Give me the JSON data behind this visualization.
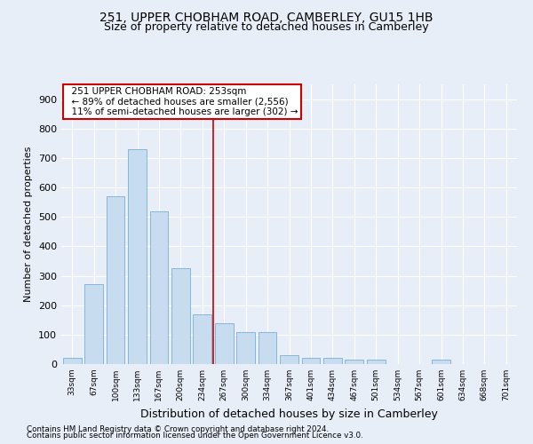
{
  "title1": "251, UPPER CHOBHAM ROAD, CAMBERLEY, GU15 1HB",
  "title2": "Size of property relative to detached houses in Camberley",
  "xlabel": "Distribution of detached houses by size in Camberley",
  "ylabel": "Number of detached properties",
  "categories": [
    "33sqm",
    "67sqm",
    "100sqm",
    "133sqm",
    "167sqm",
    "200sqm",
    "234sqm",
    "267sqm",
    "300sqm",
    "334sqm",
    "367sqm",
    "401sqm",
    "434sqm",
    "467sqm",
    "501sqm",
    "534sqm",
    "567sqm",
    "601sqm",
    "634sqm",
    "668sqm",
    "701sqm"
  ],
  "values": [
    20,
    270,
    570,
    730,
    520,
    325,
    170,
    140,
    110,
    110,
    30,
    20,
    20,
    15,
    15,
    0,
    0,
    15,
    0,
    0,
    0
  ],
  "bar_color": "#c8dcf0",
  "bar_edge_color": "#7aafd4",
  "vline_color": "#cc0000",
  "vline_x": 6.5,
  "annotation_text": "  251 UPPER CHOBHAM ROAD: 253sqm\n  ← 89% of detached houses are smaller (2,556)\n  11% of semi-detached houses are larger (302) →",
  "annotation_box_color": "#ffffff",
  "annotation_box_edge": "#cc0000",
  "ylim": [
    0,
    950
  ],
  "yticks": [
    0,
    100,
    200,
    300,
    400,
    500,
    600,
    700,
    800,
    900
  ],
  "footer1": "Contains HM Land Registry data © Crown copyright and database right 2024.",
  "footer2": "Contains public sector information licensed under the Open Government Licence v3.0.",
  "bg_color": "#e8eef8",
  "plot_bg_color": "#e8eef8",
  "title1_fontsize": 10,
  "title2_fontsize": 9,
  "ylabel_fontsize": 8,
  "xlabel_fontsize": 9
}
